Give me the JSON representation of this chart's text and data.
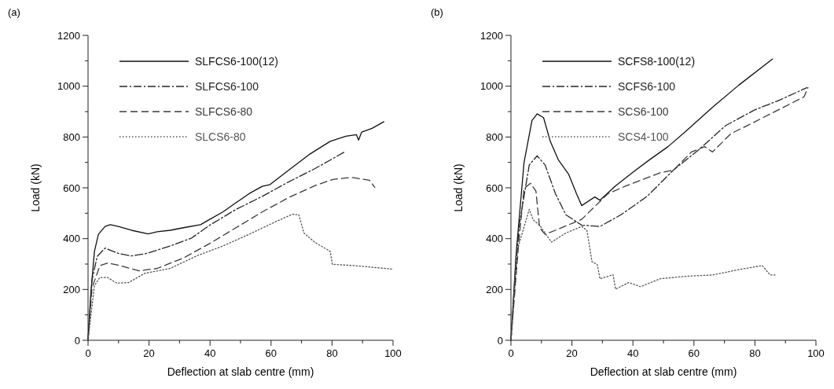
{
  "chart_data": [
    {
      "type": "line",
      "title": "(a)",
      "xlabel": "Deflection at slab centre (mm)",
      "ylabel": "Load (kN)",
      "xlim": [
        0,
        100
      ],
      "ylim": [
        0,
        1200
      ],
      "xticks": [
        0,
        {
          "value": 10,
          "label": null
        },
        20,
        {
          "value": 30,
          "label": null
        },
        40,
        {
          "value": 50,
          "label": null
        },
        60,
        {
          "value": 70,
          "label": null
        },
        80,
        {
          "value": 90,
          "label": null
        },
        100
      ],
      "yticks": [
        0,
        {
          "value": 100,
          "label": null
        },
        200,
        {
          "value": 300,
          "label": null
        },
        400,
        {
          "value": 500,
          "label": null
        },
        600,
        {
          "value": 700,
          "label": null
        },
        800,
        {
          "value": 900,
          "label": null
        },
        1000,
        {
          "value": 1100,
          "label": null
        },
        1200
      ],
      "legend": "top left",
      "grid": false,
      "series": [
        {
          "name": "SLFCS6-100(12)",
          "color": "#111111",
          "line_style": "solid",
          "x": [
            0,
            0.9,
            2.1,
            3.4,
            5.6,
            7.3,
            9.9,
            14.2,
            19.7,
            22.7,
            27,
            31.3,
            36.9,
            39.9,
            44.2,
            48.5,
            52.8,
            57.1,
            59.7,
            65.7,
            72.5,
            79.4,
            84.5,
            88,
            88.7,
            89.7,
            93.1,
            97
          ],
          "values": [
            0,
            185,
            350,
            417,
            448,
            455,
            448,
            433,
            419,
            427,
            433,
            443,
            455,
            476,
            505,
            541,
            577,
            606,
            613,
            669,
            731,
            783,
            803,
            809,
            788,
            819,
            834,
            860
          ]
        },
        {
          "name": "SLFCS6-100",
          "color": "#262626",
          "line_style": "dashdot",
          "x": [
            0,
            1.3,
            3,
            5.6,
            9.9,
            14.2,
            19.3,
            27,
            33.9,
            39.9,
            48.5,
            57.1,
            65.7,
            74.3,
            79.4,
            84.5
          ],
          "values": [
            0,
            237,
            330,
            363,
            342,
            332,
            342,
            371,
            402,
            453,
            515,
            566,
            623,
            675,
            709,
            744
          ]
        },
        {
          "name": "SLFCS6-80",
          "color": "#3a3a3a",
          "line_style": "dashed",
          "x": [
            0,
            1.3,
            3.9,
            6.4,
            9.9,
            16.7,
            22.7,
            31.3,
            39.9,
            48.5,
            57.1,
            65.7,
            74.3,
            80.3,
            86.3,
            92.3,
            94
          ],
          "values": [
            0,
            206,
            294,
            304,
            296,
            273,
            283,
            324,
            381,
            443,
            505,
            561,
            608,
            633,
            641,
            630,
            602
          ]
        },
        {
          "name": "SLCS6-80",
          "color": "#555555",
          "line_style": "dotted",
          "x": [
            0,
            2.1,
            3.9,
            6.4,
            9.4,
            13.3,
            18.5,
            27,
            35.6,
            44.2,
            52.8,
            61.4,
            67,
            69.1,
            70.8,
            74.3,
            79.4,
            80.1,
            87.1,
            100
          ],
          "values": [
            0,
            216,
            247,
            247,
            225,
            227,
            263,
            283,
            332,
            371,
            417,
            466,
            496,
            494,
            422,
            386,
            350,
            299,
            294,
            280
          ]
        }
      ]
    },
    {
      "type": "line",
      "title": "(b)",
      "xlabel": "Deflection at slab centre (mm)",
      "ylabel": "Load (kN)",
      "xlim": [
        0,
        100
      ],
      "ylim": [
        0,
        1200
      ],
      "xticks": [
        0,
        {
          "value": 10,
          "label": null
        },
        20,
        {
          "value": 30,
          "label": null
        },
        40,
        {
          "value": 50,
          "label": null
        },
        60,
        {
          "value": 70,
          "label": null
        },
        80,
        {
          "value": 90,
          "label": null
        },
        100
      ],
      "yticks": [
        0,
        {
          "value": 100,
          "label": null
        },
        200,
        {
          "value": 300,
          "label": null
        },
        400,
        {
          "value": 500,
          "label": null
        },
        600,
        {
          "value": 700,
          "label": null
        },
        800,
        {
          "value": 900,
          "label": null
        },
        1000,
        {
          "value": 1100,
          "label": null
        },
        1200
      ],
      "legend": "top left",
      "grid": false,
      "series": [
        {
          "name": "SCFS8-100(12)",
          "color": "#111111",
          "line_style": "solid",
          "x": [
            0,
            1.7,
            4.3,
            6.9,
            8.6,
            10.7,
            12.9,
            15.5,
            18.9,
            21.5,
            23.2,
            27.5,
            29.2,
            34.3,
            40.3,
            45.5,
            51.5,
            57.5,
            66.1,
            74.7,
            85.8
          ],
          "values": [
            0,
            340,
            700,
            865,
            891,
            876,
            783,
            711,
            654,
            577,
            530,
            564,
            551,
            608,
            664,
            711,
            762,
            824,
            917,
            1004,
            1107
          ]
        },
        {
          "name": "SCFS6-100",
          "color": "#262626",
          "line_style": "dashdot",
          "x": [
            0,
            2.6,
            6,
            8.6,
            11.2,
            14.6,
            18,
            23.2,
            29.2,
            36.1,
            44.6,
            53.2,
            61.8,
            70.4,
            79.8,
            88.4,
            97
          ],
          "values": [
            0,
            443,
            690,
            726,
            690,
            577,
            494,
            453,
            448,
            494,
            566,
            669,
            752,
            845,
            906,
            947,
            994
          ]
        },
        {
          "name": "SCS6-100",
          "color": "#3a3a3a",
          "line_style": "dashed",
          "x": [
            0,
            2.6,
            4.3,
            6.4,
            8.2,
            9.4,
            11.2,
            14.6,
            20.6,
            23.2,
            31.8,
            37.8,
            48.9,
            53.2,
            59.2,
            63.5,
            66.1,
            72.1,
            79,
            88.4,
            96.1,
            97.4
          ],
          "values": [
            0,
            391,
            597,
            618,
            587,
            443,
            417,
            433,
            463,
            476,
            577,
            608,
            659,
            669,
            741,
            762,
            741,
            813,
            854,
            911,
            958,
            994
          ]
        },
        {
          "name": "SCS4-100",
          "color": "#555555",
          "line_style": "dotted",
          "x": [
            0,
            1.7,
            6,
            7.3,
            9.4,
            13.3,
            18,
            23.2,
            24.9,
            26.6,
            28.3,
            29.2,
            33.5,
            34.3,
            38.6,
            42.5,
            48.9,
            57.5,
            66.1,
            74.7,
            82.4,
            85,
            86.7
          ],
          "values": [
            0,
            340,
            515,
            474,
            453,
            386,
            422,
            448,
            433,
            309,
            299,
            242,
            258,
            201,
            227,
            211,
            242,
            252,
            257,
            278,
            294,
            257,
            257
          ]
        }
      ]
    }
  ]
}
